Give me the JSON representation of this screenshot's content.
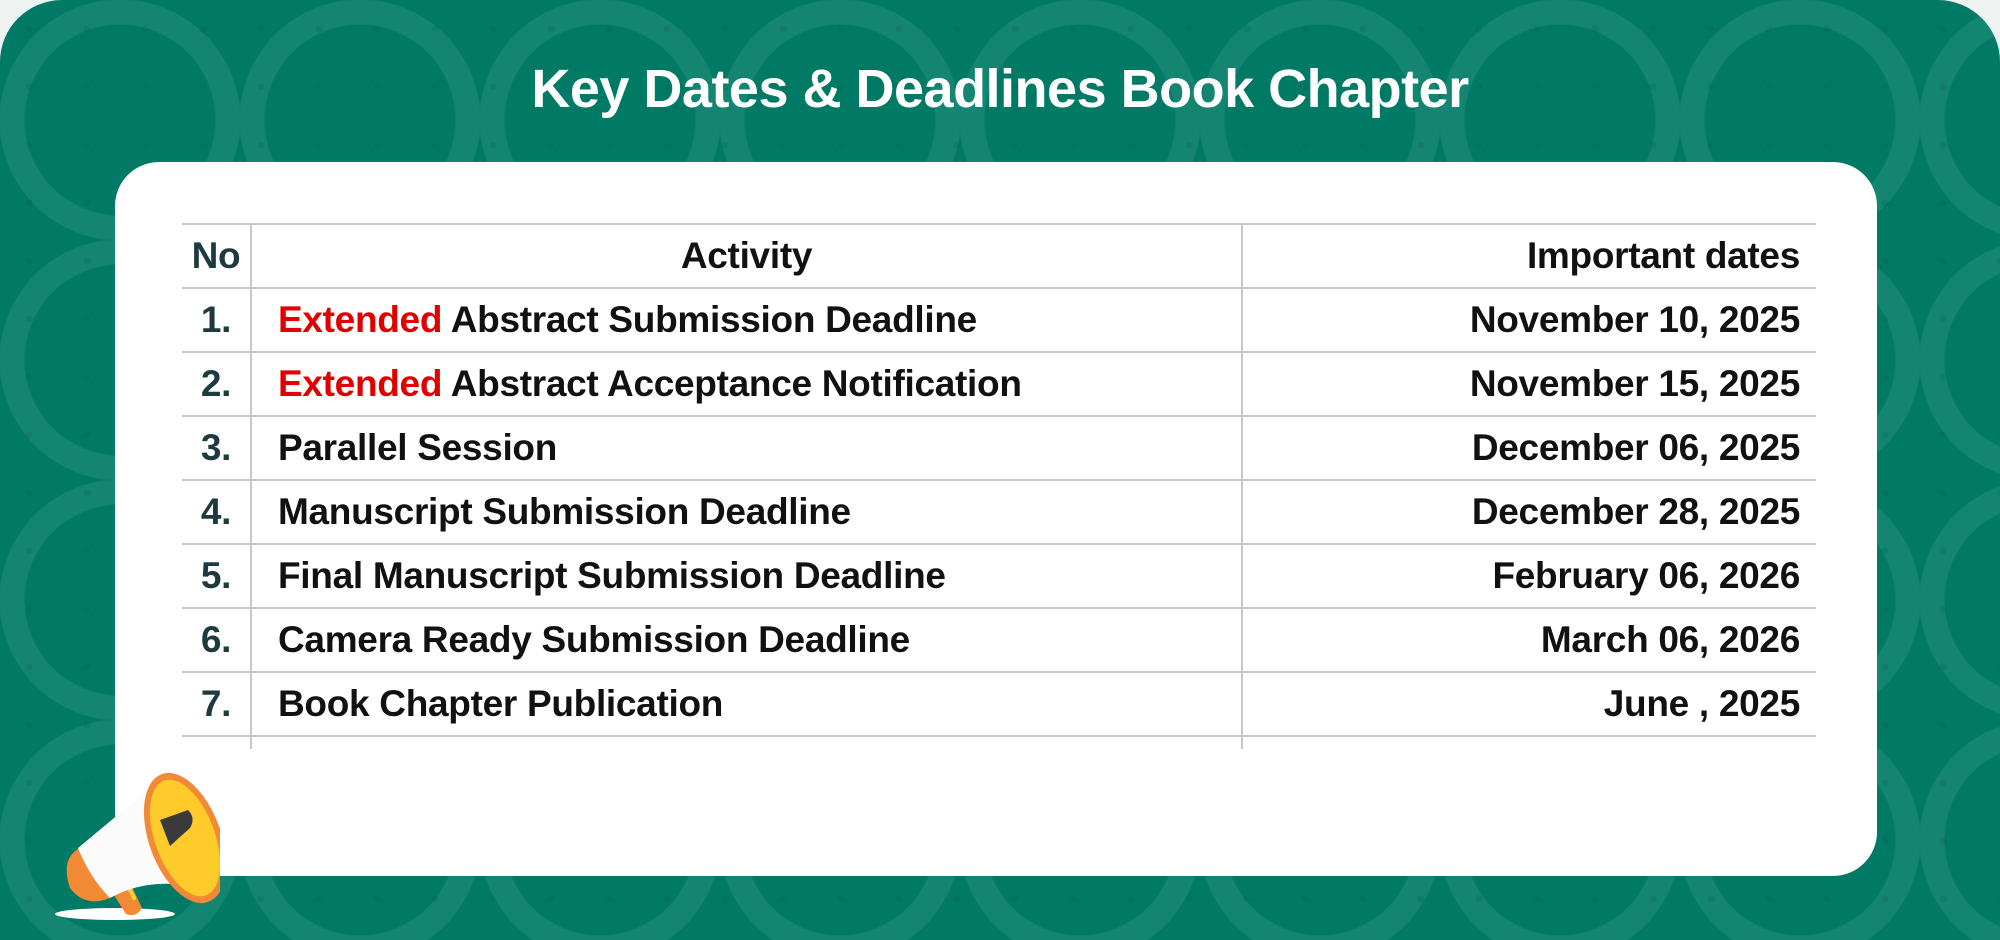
{
  "title": "Key Dates & Deadlines Book Chapter",
  "table": {
    "headers": {
      "no": "No",
      "activity": "Activity",
      "date": "Important dates"
    },
    "rows": [
      {
        "no": "1.",
        "highlight": "Extended",
        "activity": "Abstract Submission Deadline",
        "date": "November 10, 2025"
      },
      {
        "no": "2.",
        "highlight": "Extended",
        "activity": "Abstract Acceptance Notification",
        "date": "November 15, 2025"
      },
      {
        "no": "3.",
        "highlight": "",
        "activity": "Parallel Session",
        "date": "December 06, 2025"
      },
      {
        "no": "4.",
        "highlight": "",
        "activity": "Manuscript Submission Deadline",
        "date": "December 28, 2025"
      },
      {
        "no": "5.",
        "highlight": "",
        "activity": "Final Manuscript Submission Deadline",
        "date": "February 06, 2026"
      },
      {
        "no": "6.",
        "highlight": "",
        "activity": "Camera Ready Submission Deadline",
        "date": "March 06, 2026"
      },
      {
        "no": "7.",
        "highlight": "",
        "activity": "Book Chapter Publication",
        "date": "June , 2025"
      }
    ]
  },
  "colors": {
    "background": "#007a65",
    "highlight": "#e00000",
    "number": "#1e3a40"
  },
  "icons": {
    "decoration": "megaphone-icon"
  }
}
